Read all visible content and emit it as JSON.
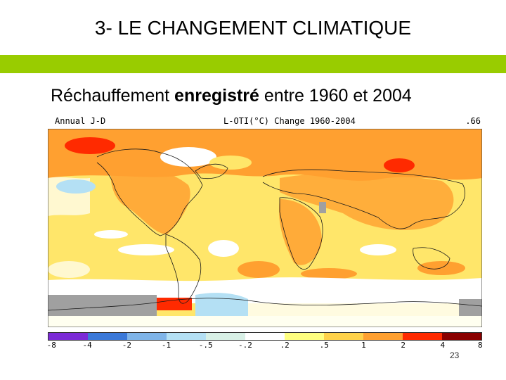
{
  "slide": {
    "title": "3- LE CHANGEMENT CLIMATIQUE",
    "subtitle_pre": "Réchauffement ",
    "subtitle_bold": "enregistré",
    "subtitle_post": " entre 1960 et 2004",
    "page_number": "23"
  },
  "map": {
    "header_left": "Annual J-D",
    "header_center": "L-OTI(°C) Change 1960-2004",
    "header_right": ".66"
  },
  "colorbar": {
    "labels": [
      "-8",
      "-4",
      "-2",
      "-1",
      "-.5",
      "-.2",
      ".2",
      ".5",
      "1",
      "2",
      "4",
      "8"
    ],
    "colors": [
      "#7b2ad6",
      "#3a78d8",
      "#7fb4e8",
      "#b4e0f4",
      "#d8f0e6",
      "#ffffff",
      "#ffff80",
      "#ffd24a",
      "#ffa030",
      "#ff2a00",
      "#8a0000"
    ]
  },
  "palette": {
    "accent_bar": "#99cc00",
    "grey_nodata": "#a0a0a0"
  }
}
